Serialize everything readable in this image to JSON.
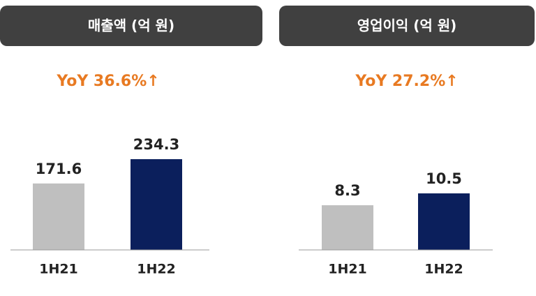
{
  "chart_data": [
    {
      "type": "bar",
      "title": "매출액 (억 원)",
      "annotation": "YoY 36.6%↑",
      "categories": [
        "1H21",
        "1H22"
      ],
      "values": [
        171.6,
        234.3
      ],
      "colors": [
        "#bfbfbf",
        "#0b1f5c"
      ]
    },
    {
      "type": "bar",
      "title": "영업이익 (억 원)",
      "annotation": "YoY 27.2%↑",
      "categories": [
        "1H21",
        "1H22"
      ],
      "values": [
        8.3,
        10.5
      ],
      "colors": [
        "#bfbfbf",
        "#0b1f5c"
      ]
    }
  ]
}
